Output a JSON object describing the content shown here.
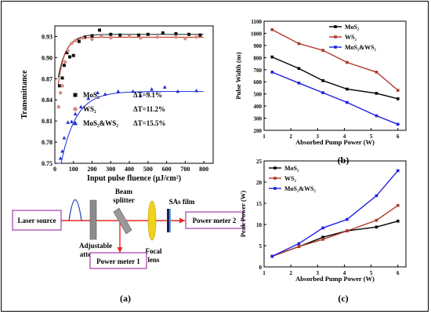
{
  "panel_labels": {
    "a": "(a)",
    "b": "(b)",
    "c": "(c)"
  },
  "setup": {
    "laser_source": "Laser source",
    "adjustable": "Adjustable",
    "attenuator": "attenuator",
    "beam": "Beam",
    "splitter": "splitter",
    "sas_film": "SAs film",
    "focal": "Focal",
    "lens": "lens",
    "power_meter_1": "Power meter 1",
    "power_meter_2": "Power meter 2",
    "colors": {
      "box_border": "#a23ea8",
      "beam": "#e8281e",
      "lens": "#f2d21b"
    }
  },
  "chart_data": [
    {
      "id": "transmittance",
      "type": "scatter",
      "xlabel": "Input pulse fluence (μJ/cm²)",
      "ylabel": "Transmittance",
      "xlim": [
        0,
        850
      ],
      "ylim": [
        0.75,
        0.945
      ],
      "xticks": [
        0,
        100,
        200,
        300,
        400,
        500,
        600,
        700,
        800
      ],
      "yticks": [
        0.75,
        0.78,
        0.81,
        0.84,
        0.87,
        0.9,
        0.93
      ],
      "series": [
        {
          "name": "MoS₂",
          "note": "ΔT=9.1%",
          "marker": "square",
          "color": "#111111",
          "fit_color": "#333333",
          "points": [
            [
              25,
              0.86
            ],
            [
              40,
              0.871
            ],
            [
              50,
              0.889
            ],
            [
              65,
              0.907
            ],
            [
              80,
              0.901
            ],
            [
              100,
              0.903
            ],
            [
              130,
              0.923
            ],
            [
              160,
              0.929
            ],
            [
              200,
              0.931
            ],
            [
              240,
              0.939
            ],
            [
              300,
              0.933
            ],
            [
              350,
              0.932
            ],
            [
              450,
              0.932
            ],
            [
              500,
              0.933
            ],
            [
              580,
              0.935
            ],
            [
              650,
              0.934
            ],
            [
              720,
              0.933
            ],
            [
              780,
              0.932
            ]
          ],
          "fit": {
            "sat": 0.933,
            "dt": 0.091,
            "k": 45
          }
        },
        {
          "name": "WS₂",
          "note": "ΔT=11.2%",
          "marker": "circle",
          "color": "#d88b7f",
          "fit_color": "#c0392b",
          "points": [
            [
              20,
              0.83
            ],
            [
              30,
              0.85
            ],
            [
              40,
              0.86
            ],
            [
              55,
              0.894
            ],
            [
              70,
              0.91
            ],
            [
              90,
              0.92
            ],
            [
              110,
              0.924
            ],
            [
              150,
              0.928
            ],
            [
              200,
              0.926
            ],
            [
              250,
              0.93
            ],
            [
              300,
              0.928
            ],
            [
              400,
              0.93
            ],
            [
              460,
              0.928
            ],
            [
              550,
              0.929
            ],
            [
              650,
              0.929
            ],
            [
              700,
              0.927
            ],
            [
              760,
              0.929
            ]
          ],
          "fit": {
            "sat": 0.929,
            "dt": 0.112,
            "k": 35
          }
        },
        {
          "name": "MoS₂&WS₂",
          "note": "ΔT=15.5%",
          "marker": "triangle",
          "color": "#1f2fd6",
          "fit_color": "#2a3fd8",
          "points": [
            [
              30,
              0.757
            ],
            [
              40,
              0.767
            ],
            [
              50,
              0.786
            ],
            [
              70,
              0.808
            ],
            [
              90,
              0.809
            ],
            [
              110,
              0.82
            ],
            [
              140,
              0.83
            ],
            [
              180,
              0.842
            ],
            [
              230,
              0.85
            ],
            [
              270,
              0.848
            ],
            [
              340,
              0.852
            ],
            [
              420,
              0.852
            ],
            [
              460,
              0.846
            ],
            [
              520,
              0.855
            ],
            [
              590,
              0.858
            ],
            [
              660,
              0.852
            ],
            [
              760,
              0.853
            ]
          ],
          "fit": {
            "sat": 0.852,
            "dt": 0.155,
            "k": 80
          }
        }
      ]
    },
    {
      "id": "pulse-width",
      "type": "line",
      "xlabel": "Absorbed Pump Power (W)",
      "ylabel": "Pulse Width (ns)",
      "xlim": [
        1,
        6.3
      ],
      "ylim": [
        200,
        1100
      ],
      "xticks": [
        1,
        2,
        3,
        4,
        5,
        6
      ],
      "yticks": [
        200,
        300,
        400,
        500,
        600,
        700,
        800,
        900,
        1000,
        1100
      ],
      "x": [
        1.3,
        2.3,
        3.2,
        4.1,
        5.2,
        6.0
      ],
      "series": [
        {
          "name": "MoS₂",
          "color": "#000000",
          "values": [
            805,
            710,
            610,
            540,
            505,
            460
          ]
        },
        {
          "name": "WS₂",
          "color": "#b0392a",
          "values": [
            1030,
            915,
            860,
            760,
            680,
            530
          ]
        },
        {
          "name": "MoS₂&WS₂",
          "color": "#2020e0",
          "values": [
            680,
            590,
            510,
            430,
            320,
            250
          ]
        }
      ]
    },
    {
      "id": "peak-power",
      "type": "line",
      "xlabel": "Absorbed Pump Power (W)",
      "ylabel": "Peak Power (W)",
      "xlim": [
        1,
        6.3
      ],
      "ylim": [
        0,
        25
      ],
      "xticks": [
        1,
        2,
        3,
        4,
        5,
        6
      ],
      "yticks": [
        0,
        5,
        10,
        15,
        20,
        25
      ],
      "x": [
        1.3,
        2.3,
        3.2,
        4.1,
        5.2,
        6.0
      ],
      "series": [
        {
          "name": "MoS₂",
          "color": "#000000",
          "values": [
            2.5,
            4.8,
            7.0,
            8.5,
            9.4,
            10.8
          ]
        },
        {
          "name": "WS₂",
          "color": "#b0392a",
          "values": [
            2.5,
            4.8,
            6.5,
            8.5,
            11.0,
            14.5
          ]
        },
        {
          "name": "MoS₂&WS₂",
          "color": "#2020e0",
          "values": [
            2.5,
            5.5,
            9.2,
            11.2,
            16.8,
            22.7
          ]
        }
      ]
    }
  ]
}
